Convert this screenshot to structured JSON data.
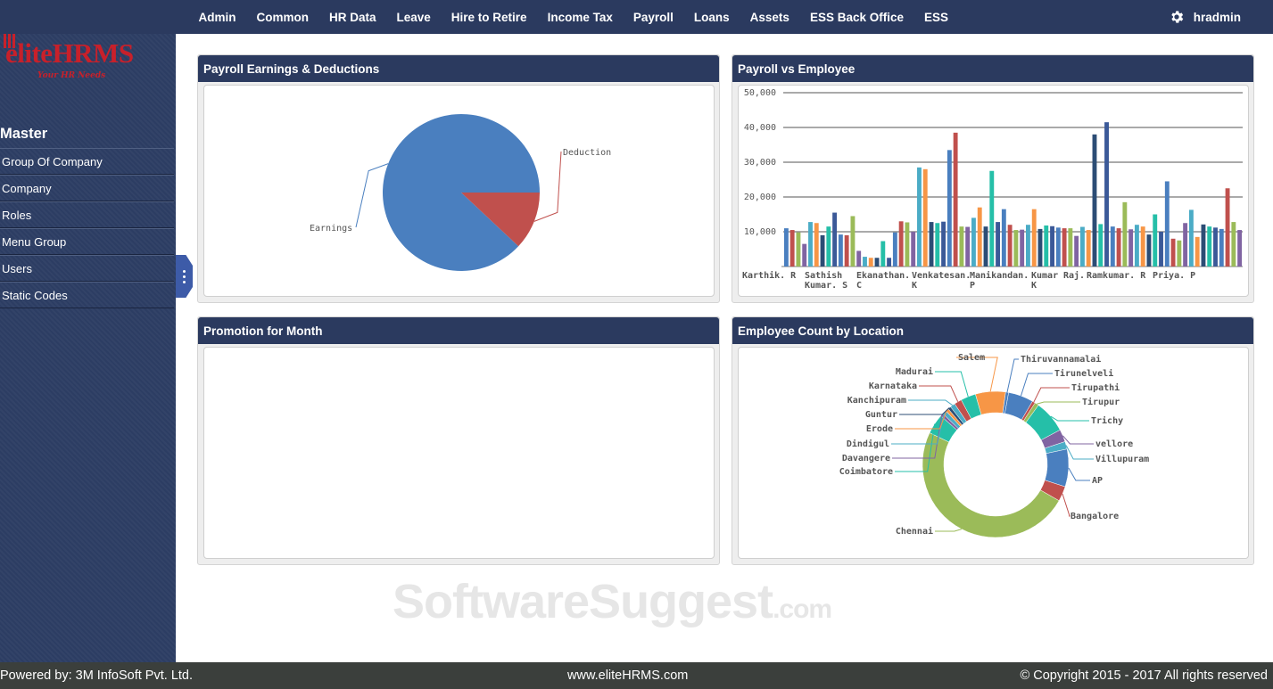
{
  "app": {
    "logo_text": "eliteHRMS",
    "logo_tagline": "Your HR Needs",
    "brand_color": "#c8202a",
    "nav_color": "#2b3a5f"
  },
  "topnav": {
    "items": [
      "Admin",
      "Common",
      "HR Data",
      "Leave",
      "Hire to Retire",
      "Income Tax",
      "Payroll",
      "Loans",
      "Assets",
      "ESS Back Office",
      "ESS"
    ],
    "user": "hradmin",
    "settings_icon": "gear-icon"
  },
  "sidebar": {
    "title": "Master",
    "items": [
      "Group Of Company",
      "Company",
      "Roles",
      "Menu Group",
      "Users",
      "Static Codes"
    ]
  },
  "panels": {
    "earnings": {
      "title": "Payroll Earnings & Deductions"
    },
    "payroll_vs_employee": {
      "title": "Payroll vs Employee"
    },
    "promotion": {
      "title": "Promotion for Month"
    },
    "location": {
      "title": "Employee Count by Location"
    }
  },
  "chart_data": [
    {
      "type": "pie",
      "labels": [
        "Earnings",
        "Deduction"
      ],
      "values": [
        88,
        12
      ],
      "colors": [
        "#4a7fbf",
        "#c0504d"
      ]
    },
    {
      "type": "bar",
      "ylim": [
        0,
        50000
      ],
      "yticks": [
        "50,000",
        "40,000",
        "30,000",
        "20,000",
        "10,000"
      ],
      "tick_labels": [
        [
          "Karthik. R"
        ],
        [
          "Sathish",
          "Kumar. S"
        ],
        [
          "Ekanathan.",
          "C"
        ],
        [
          "Venkatesan.",
          "K"
        ],
        [
          "Manikandan.",
          "P"
        ],
        [
          "Kumar",
          "K"
        ],
        [
          "Raj."
        ],
        [
          "Ramkumar. R"
        ],
        [
          "Priya. P"
        ]
      ],
      "colors": [
        "#4a7fbf",
        "#c0504d",
        "#9bbb59",
        "#8064a2",
        "#4bacc6",
        "#f79646",
        "#2c4d75",
        "#25bfa8",
        "#3b5998"
      ],
      "values": [
        11000,
        10500,
        9800,
        6500,
        12800,
        12500,
        9000,
        11500,
        15500,
        9200,
        9000,
        14500,
        4500,
        2800,
        2500,
        2500,
        7300,
        2500,
        9800,
        13000,
        12700,
        10000,
        28500,
        28000,
        12800,
        12500,
        12900,
        33500,
        38500,
        11500,
        11400,
        14000,
        17000,
        11500,
        27500,
        12800,
        16500,
        12000,
        10500,
        10600,
        12000,
        16500,
        10800,
        11800,
        11600,
        11200,
        11000,
        11000,
        8800,
        11400,
        10500,
        38000,
        12200,
        41500,
        11500,
        11000,
        18500,
        10700,
        12000,
        11500,
        9200,
        15000,
        10000,
        24500,
        8000,
        7500,
        12500,
        16300,
        8500,
        12100,
        11500,
        11200,
        10800,
        22500,
        12800,
        10500
      ]
    },
    {
      "type": "pie",
      "subtype": "donut",
      "labels": [
        "Salem",
        "Thiruvannamalai",
        "Tirunelveli",
        "Tirupathi",
        "Tirupur",
        "Trichy",
        "vellore",
        "Villupuram",
        "AP",
        "Bangalore",
        "Chennai",
        "Coimbatore",
        "Davangere",
        "Dindigul",
        "Erode",
        "Guntur",
        "Kanchipuram",
        "Karnataka",
        "Madurai"
      ],
      "values": [
        6,
        0.6,
        5,
        0.6,
        0.8,
        6.5,
        2.5,
        1.5,
        7.5,
        3,
        44,
        4,
        0.6,
        0.8,
        0.6,
        0.6,
        1,
        1.5,
        3
      ],
      "colors": [
        "#f79646",
        "#4a7fbf",
        "#4a7fbf",
        "#c0504d",
        "#9bbb59",
        "#25bfa8",
        "#8064a2",
        "#4bacc6",
        "#4a7fbf",
        "#c0504d",
        "#9bbb59",
        "#25bfa8",
        "#8064a2",
        "#4bacc6",
        "#f79646",
        "#2c4d75",
        "#4bacc6",
        "#c0504d",
        "#25bfa8"
      ]
    }
  ],
  "watermark": {
    "main": "SoftwareSuggest",
    "suffix": ".com"
  },
  "footer": {
    "powered_by": "Powered by: 3M InfoSoft Pvt. Ltd.",
    "website": "www.eliteHRMS.com",
    "copyright": "© Copyright 2015 - 2017 All rights reserved"
  }
}
